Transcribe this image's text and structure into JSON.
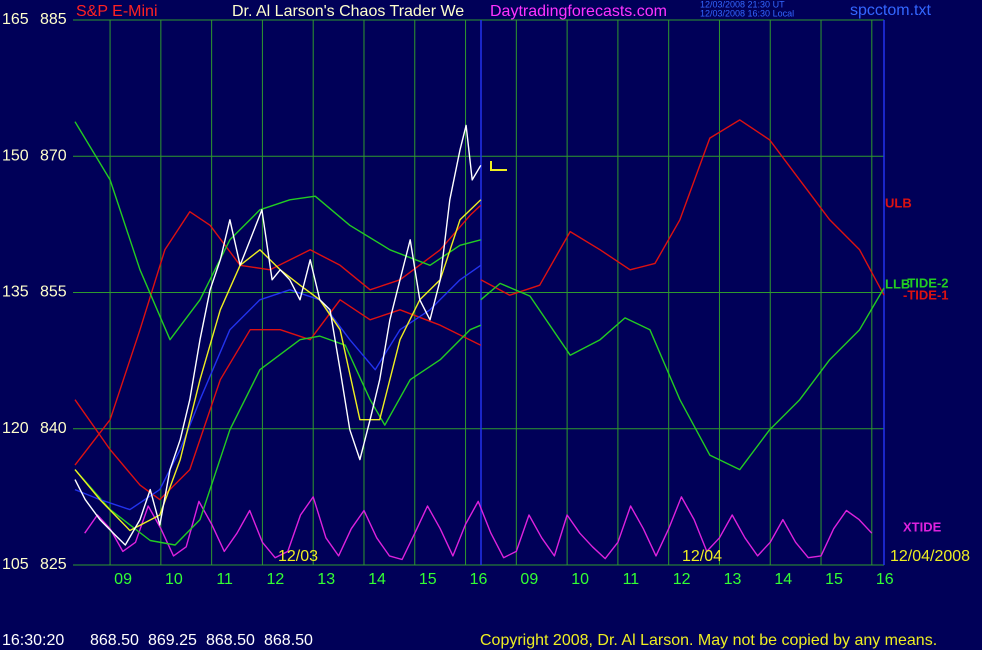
{
  "chart_data": {
    "type": "line",
    "instrument": "S&P E-Mini",
    "title": "Dr. Al Larson's Chaos Trader We",
    "website": "Daytradingforecasts.com",
    "timestamp_ut": "12/03/2008 21:30 UT",
    "timestamp_local": "12/03/2008 16:30 Local",
    "file": "spcctom.txt",
    "date_labels": [
      "12/03",
      "12/04",
      "12/04/2008"
    ],
    "status_time": "16:30:20",
    "quote": [
      "868.50",
      "869.25",
      "868.50",
      "868.50"
    ],
    "copyright": "Copyright 2008, Dr. Al Larson. May not be copied by any means.",
    "xlim": [
      0.27,
      16.24
    ],
    "xticks": [
      {
        "value": 1,
        "label": "09"
      },
      {
        "value": 2,
        "label": "10"
      },
      {
        "value": 3,
        "label": "11"
      },
      {
        "value": 4,
        "label": "12"
      },
      {
        "value": 5,
        "label": "13"
      },
      {
        "value": 6,
        "label": "14"
      },
      {
        "value": 7,
        "label": "15"
      },
      {
        "value": 8,
        "label": "16"
      },
      {
        "value": 9,
        "label": "09"
      },
      {
        "value": 10,
        "label": "10"
      },
      {
        "value": 11,
        "label": "11"
      },
      {
        "value": 12,
        "label": "12"
      },
      {
        "value": 13,
        "label": "13"
      },
      {
        "value": 14,
        "label": "14"
      },
      {
        "value": 15,
        "label": "15"
      },
      {
        "value": 16,
        "label": "16"
      }
    ],
    "ylim": [
      825,
      885
    ],
    "yticks": [
      825,
      840,
      855,
      870,
      885
    ],
    "y2lim": [
      105,
      165
    ],
    "y2ticks": [
      105,
      120,
      135,
      150,
      165
    ],
    "grid": true,
    "series": [
      {
        "name": "XTIDE",
        "color": "#dd22dd",
        "x": [
          0.5,
          0.75,
          1,
          1.25,
          1.5,
          1.75,
          2,
          2.25,
          2.5,
          2.75,
          3,
          3.25,
          3.5,
          3.75,
          4,
          4.25,
          4.5,
          4.75,
          5,
          5.25,
          5.5,
          5.75,
          6,
          6.25,
          6.5,
          6.75,
          7,
          7.25,
          7.5,
          7.75,
          8,
          8.25,
          8.5,
          8.75,
          9,
          9.25,
          9.5,
          9.75,
          10,
          10.25,
          10.5,
          10.75,
          11,
          11.25,
          11.5,
          11.75,
          12,
          12.25,
          12.5,
          12.75,
          13,
          13.25,
          13.5,
          13.75,
          14,
          14.25,
          14.5,
          14.75,
          15,
          15.25,
          15.5,
          15.75,
          16
        ],
        "values": [
          828.5,
          830.5,
          829.0,
          826.5,
          827.5,
          831.5,
          829.0,
          826.0,
          827.0,
          832.0,
          829.5,
          826.5,
          828.5,
          831.0,
          827.5,
          825.8,
          826.5,
          830.5,
          832.5,
          828.0,
          826.0,
          829.0,
          831.0,
          828.0,
          826.0,
          825.6,
          828.5,
          831.5,
          829.0,
          826.0,
          829.5,
          832.0,
          828.5,
          825.8,
          826.5,
          830.5,
          828.0,
          826.0,
          830.5,
          828.5,
          827.0,
          825.7,
          827.5,
          831.5,
          829.0,
          826.0,
          829.0,
          832.5,
          830.0,
          826.5,
          828.0,
          830.5,
          828.0,
          826.0,
          827.5,
          830.0,
          827.5,
          825.8,
          826.0,
          829.0,
          831.0,
          830.0,
          828.5
        ]
      },
      {
        "name": "-TIDE-1",
        "color": "#dd1111",
        "x": [
          8.3,
          8.87,
          9.46,
          10.06,
          10.65,
          11.24,
          11.73,
          12.22,
          12.81,
          13.4,
          13.99,
          14.58,
          15.17,
          15.76,
          16.24
        ],
        "values": [
          856.4,
          854.7,
          855.8,
          861.7,
          859.7,
          857.5,
          858.2,
          863.0,
          872.0,
          874.0,
          871.8,
          867.4,
          863.0,
          859.7,
          854.7
        ]
      },
      {
        "name": "-TIDE-2",
        "color": "#22cc22",
        "x": [
          8.3,
          8.68,
          9.27,
          10.06,
          10.65,
          11.14,
          11.63,
          12.22,
          12.81,
          13.4,
          13.99,
          14.58,
          15.17,
          15.76,
          16.24
        ],
        "values": [
          854.2,
          856.0,
          854.6,
          848.1,
          849.8,
          852.2,
          850.9,
          843.2,
          837.1,
          835.5,
          839.9,
          843.2,
          847.6,
          850.9,
          855.5
        ]
      },
      {
        "name": "ULB",
        "color": "#dd1111",
        "x": [
          0.31,
          1.0,
          1.59,
          2.08,
          2.57,
          2.97,
          3.56,
          4.15,
          4.94,
          5.53,
          6.12,
          6.71,
          7.5,
          8.09,
          8.3
        ],
        "values": [
          836.0,
          841.0,
          850.9,
          859.7,
          863.9,
          862.4,
          858.0,
          857.5,
          859.7,
          858.0,
          855.3,
          856.4,
          859.7,
          863.5,
          864.6
        ]
      },
      {
        "color": "#dd1111",
        "x": [
          0.31,
          1.0,
          1.59,
          1.98,
          2.57,
          3.17,
          3.76,
          4.35,
          4.94,
          5.53,
          6.12,
          6.71,
          7.5,
          8.3
        ],
        "values": [
          843.2,
          837.7,
          833.8,
          832.2,
          835.5,
          845.4,
          850.9,
          850.9,
          849.8,
          854.2,
          852.0,
          853.1,
          851.4,
          849.2
        ]
      },
      {
        "color": "#22cc22",
        "x": [
          0.31,
          1.0,
          1.59,
          2.18,
          2.77,
          3.36,
          3.95,
          4.54,
          5.04,
          5.72,
          6.51,
          7.3,
          7.89,
          8.3
        ],
        "values": [
          873.8,
          867.4,
          857.5,
          849.8,
          854.2,
          860.8,
          864.1,
          865.2,
          865.6,
          862.4,
          859.7,
          858.0,
          860.2,
          860.8
        ]
      },
      {
        "name": "LLB",
        "color": "#22cc22",
        "x": [
          0.31,
          1.0,
          1.79,
          2.28,
          2.77,
          3.36,
          3.95,
          4.74,
          5.13,
          5.63,
          6.12,
          6.41,
          6.91,
          7.5,
          8.09,
          8.3
        ],
        "values": [
          835.5,
          831.1,
          827.7,
          827.2,
          830.0,
          839.9,
          846.5,
          849.8,
          850.2,
          849.2,
          843.2,
          840.4,
          845.4,
          847.6,
          850.9,
          851.4
        ]
      },
      {
        "color": "#2233ee",
        "x": [
          0.31,
          0.8,
          1.39,
          1.98,
          2.38,
          2.77,
          3.36,
          3.95,
          4.54,
          5.13,
          5.72,
          6.22,
          6.71,
          7.3,
          7.89,
          8.3
        ],
        "values": [
          833.3,
          832.2,
          831.1,
          833.3,
          837.7,
          843.2,
          850.9,
          854.2,
          855.3,
          854.2,
          849.8,
          846.5,
          850.9,
          853.1,
          856.4,
          858.0
        ]
      },
      {
        "color": "#eeee22",
        "x": [
          0.31,
          0.8,
          1.39,
          1.98,
          2.38,
          2.77,
          3.17,
          3.56,
          3.95,
          4.35,
          4.74,
          5.13,
          5.53,
          5.92,
          6.31,
          6.71,
          7.1,
          7.5,
          7.89,
          8.3
        ],
        "values": [
          835.5,
          832.2,
          828.8,
          830.5,
          836.6,
          845.4,
          853.1,
          858.0,
          859.7,
          857.5,
          855.8,
          854.2,
          850.9,
          841.0,
          841.0,
          849.8,
          854.2,
          856.4,
          863.0,
          865.2
        ]
      },
      {
        "color": "#ffffff",
        "x": [
          0.31,
          0.51,
          0.8,
          1.1,
          1.3,
          1.59,
          1.79,
          1.98,
          2.18,
          2.38,
          2.57,
          2.77,
          2.97,
          3.17,
          3.36,
          3.56,
          3.76,
          3.99,
          4.19,
          4.35,
          4.54,
          4.74,
          4.94,
          5.13,
          5.33,
          5.53,
          5.72,
          5.92,
          6.12,
          6.31,
          6.51,
          6.71,
          6.91,
          7.1,
          7.3,
          7.5,
          7.69,
          7.89,
          8.01,
          8.13,
          8.3
        ],
        "values": [
          834.4,
          832.2,
          830.0,
          828.3,
          827.2,
          830.0,
          833.3,
          829.4,
          835.5,
          838.8,
          843.2,
          849.8,
          855.3,
          858.6,
          863.0,
          858.0,
          860.8,
          864.1,
          856.4,
          857.5,
          856.4,
          854.2,
          858.6,
          854.2,
          853.1,
          846.5,
          839.9,
          836.6,
          841.0,
          845.4,
          852.0,
          856.4,
          860.8,
          854.2,
          852.0,
          856.4,
          865.2,
          870.7,
          873.4,
          867.4,
          869.0
        ]
      }
    ]
  }
}
